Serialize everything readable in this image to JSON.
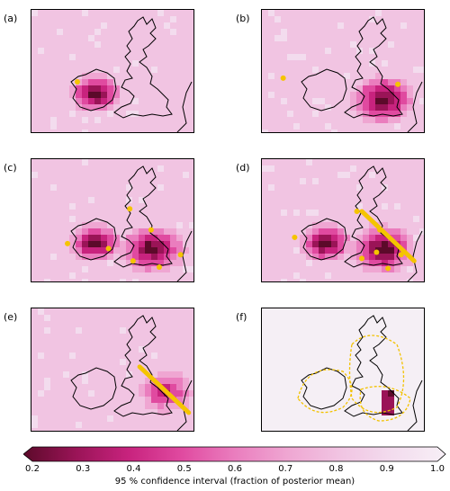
{
  "panels": [
    {
      "label": "(a)",
      "sites": [
        [
          0.28,
          0.58
        ]
      ],
      "line": null,
      "hot": "ireland"
    },
    {
      "label": "(b)",
      "sites": [
        [
          0.13,
          0.55
        ],
        [
          0.83,
          0.6
        ]
      ],
      "line": null,
      "hot": "england"
    },
    {
      "label": "(c)",
      "sites": [
        [
          0.22,
          0.68
        ],
        [
          0.6,
          0.4
        ],
        [
          0.73,
          0.57
        ],
        [
          0.62,
          0.82
        ],
        [
          0.78,
          0.87
        ],
        [
          0.91,
          0.77
        ],
        [
          0.47,
          0.72
        ]
      ],
      "line": null,
      "hot": "both"
    },
    {
      "label": "(d)",
      "sites": [
        [
          0.2,
          0.63
        ],
        [
          0.58,
          0.42
        ],
        [
          0.72,
          0.57
        ],
        [
          0.61,
          0.8
        ],
        [
          0.77,
          0.88
        ],
        [
          0.85,
          0.77
        ],
        [
          0.7,
          0.75
        ]
      ],
      "line": [
        [
          0.61,
          0.42
        ],
        [
          0.93,
          0.82
        ]
      ],
      "hot": "both"
    },
    {
      "label": "(e)",
      "sites": [],
      "line": [
        [
          0.66,
          0.47
        ],
        [
          0.96,
          0.84
        ]
      ],
      "hot": "east"
    },
    {
      "label": "(f)",
      "sites": [],
      "line": null,
      "hot": "box"
    }
  ],
  "colorbar": {
    "ticks": [
      "0.2",
      "0.3",
      "0.4",
      "0.5",
      "0.6",
      "0.7",
      "0.8",
      "0.9",
      "1.0"
    ],
    "label": "95 % confidence interval (fraction of posterior mean)",
    "colors": [
      "#5c0a2a",
      "#9a1457",
      "#c8237e",
      "#e04aa0",
      "#ea7dbe",
      "#efa6d2",
      "#f1c4e2",
      "#f3dcee",
      "#f7eff6"
    ]
  }
}
